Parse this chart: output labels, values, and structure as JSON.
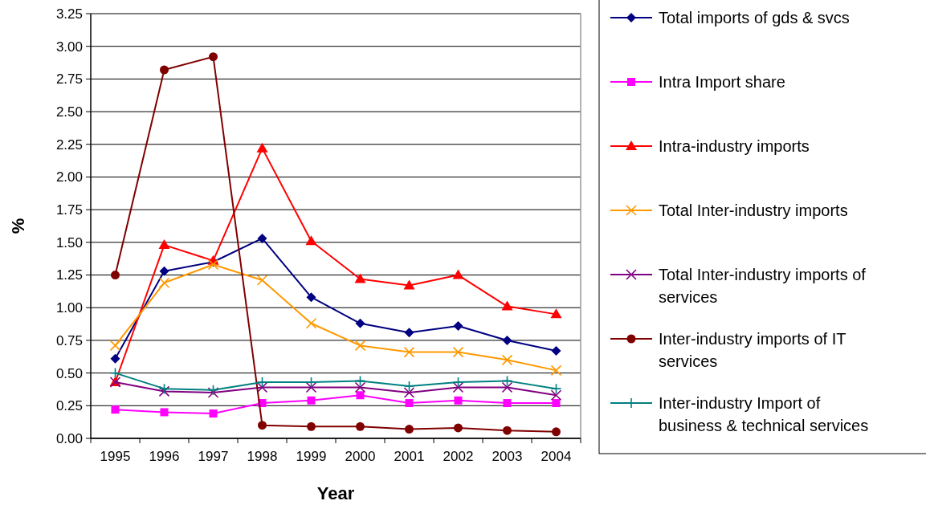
{
  "chart_data": {
    "type": "line",
    "xlabel": "Year",
    "ylabel": "%",
    "categories": [
      "1995",
      "1996",
      "1997",
      "1998",
      "1999",
      "2000",
      "2001",
      "2002",
      "2003",
      "2004"
    ],
    "ylim": [
      0,
      3.25
    ],
    "yticks": [
      {
        "value": 0,
        "label": "0.00"
      },
      {
        "value": 0.25,
        "label": "0.25"
      },
      {
        "value": 0.5,
        "label": "0.50"
      },
      {
        "value": 0.75,
        "label": "0.75"
      },
      {
        "value": 1,
        "label": "1.00"
      },
      {
        "value": 1.25,
        "label": "1.25"
      },
      {
        "value": 1.5,
        "label": "1.50"
      },
      {
        "value": 1.75,
        "label": "1.75"
      },
      {
        "value": 2,
        "label": "2.00"
      },
      {
        "value": 2.25,
        "label": "2.25"
      },
      {
        "value": 2.5,
        "label": "2.50"
      },
      {
        "value": 2.75,
        "label": "2.75"
      },
      {
        "value": 3,
        "label": "3.00"
      },
      {
        "value": 3.25,
        "label": "3.25"
      }
    ],
    "grid": "y",
    "legend": "right",
    "series": [
      {
        "name": "Total imports of gds & svcs",
        "color": "#000080",
        "marker": "diamond",
        "values": [
          0.61,
          1.28,
          1.35,
          1.53,
          1.08,
          0.88,
          0.81,
          0.86,
          0.75,
          0.67
        ]
      },
      {
        "name": "Intra Import share",
        "color": "#ff00ff",
        "marker": "square",
        "values": [
          0.22,
          0.2,
          0.19,
          0.27,
          0.29,
          0.33,
          0.27,
          0.29,
          0.27,
          0.27
        ]
      },
      {
        "name": "Intra-industry imports",
        "color": "#ff0000",
        "marker": "triangle",
        "values": [
          0.43,
          1.48,
          1.36,
          2.22,
          1.51,
          1.22,
          1.17,
          1.25,
          1.01,
          0.95
        ]
      },
      {
        "name": "Total Inter-industry imports",
        "color": "#ff9900",
        "marker": "cross",
        "values": [
          0.71,
          1.19,
          1.33,
          1.21,
          0.88,
          0.71,
          0.66,
          0.66,
          0.6,
          0.52
        ]
      },
      {
        "name": "Total Inter-industry imports of services",
        "color": "#800080",
        "marker": "cross",
        "values": [
          0.43,
          0.36,
          0.35,
          0.39,
          0.39,
          0.39,
          0.35,
          0.39,
          0.39,
          0.33
        ]
      },
      {
        "name": "Inter-industry imports of IT services",
        "color": "#800000",
        "marker": "circle",
        "values": [
          1.25,
          2.82,
          2.92,
          0.1,
          0.09,
          0.09,
          0.07,
          0.08,
          0.06,
          0.05
        ]
      },
      {
        "name": "Inter-industry Import of business & technical services",
        "color": "#008080",
        "marker": "plus",
        "values": [
          0.5,
          0.38,
          0.37,
          0.43,
          0.43,
          0.44,
          0.4,
          0.43,
          0.44,
          0.38
        ]
      }
    ]
  }
}
